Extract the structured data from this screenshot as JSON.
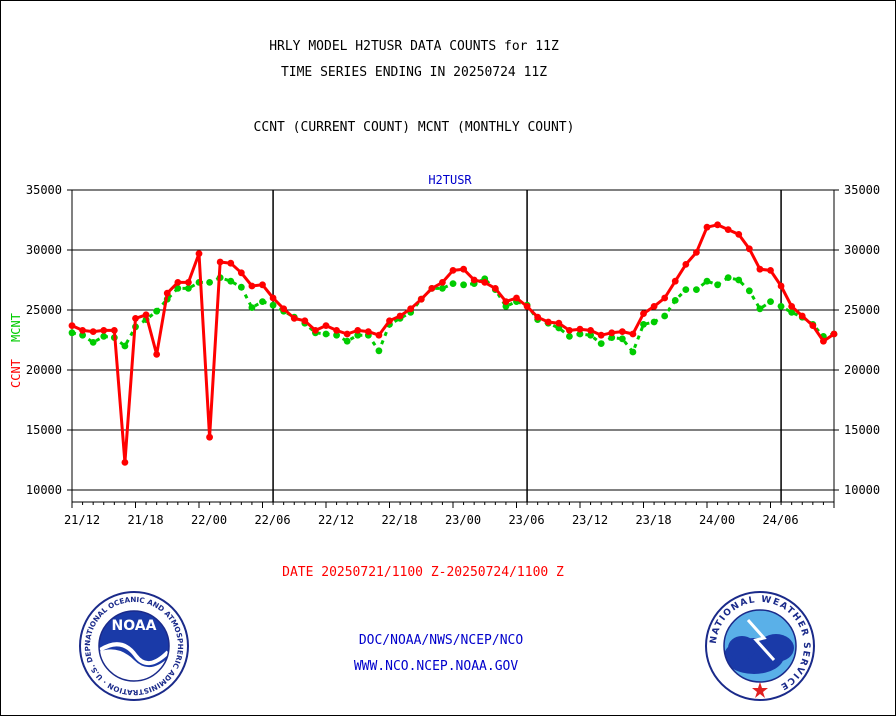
{
  "header": {
    "title_line1": "HRLY MODEL H2TUSR DATA COUNTS for 11Z",
    "title_line2": "TIME SERIES ENDING IN 20250724 11Z",
    "subtitle": "CCNT (CURRENT COUNT) MCNT (MONTHLY COUNT)"
  },
  "footer": {
    "date_range": "DATE 20250721/1100 Z-20250724/1100 Z",
    "org_path": "DOC/NOAA/NWS/NCEP/NCO",
    "website": "WWW.NCO.NCEP.NOAA.GOV"
  },
  "logos": {
    "noaa_text": "NOAA",
    "noaa_ring": "NATIONAL OCEANIC AND ATMOSPHERIC ADMINISTRATION · U.S. DEPARTMENT OF COMMERCE ·",
    "nws_ring": "NATIONAL WEATHER SERVICE"
  },
  "colors": {
    "ccnt": "#ff0000",
    "mcnt": "#00cc00",
    "plot_label": "#0000cc",
    "footer_blue": "#0000cc",
    "date_red": "#ff0000"
  },
  "chart_data": {
    "type": "line",
    "plot_label": "H2TUSR",
    "ylabel_ccnt": "CCNT",
    "ylabel_mcnt": "MCNT",
    "ylim": [
      9000,
      35000
    ],
    "yticks": [
      10000,
      15000,
      20000,
      25000,
      30000,
      35000
    ],
    "xlim": [
      0,
      72
    ],
    "xticks": [
      {
        "x": 0,
        "label": "21/12"
      },
      {
        "x": 6,
        "label": "21/18"
      },
      {
        "x": 12,
        "label": "22/00"
      },
      {
        "x": 18,
        "label": "22/06"
      },
      {
        "x": 24,
        "label": "22/12"
      },
      {
        "x": 30,
        "label": "22/18"
      },
      {
        "x": 36,
        "label": "23/00"
      },
      {
        "x": 42,
        "label": "23/06"
      },
      {
        "x": 48,
        "label": "23/12"
      },
      {
        "x": 54,
        "label": "23/18"
      },
      {
        "x": 60,
        "label": "24/00"
      },
      {
        "x": 66,
        "label": "24/06"
      }
    ],
    "day_boundaries": [
      19,
      43,
      67
    ],
    "gridlines_y": [
      10000,
      15000,
      20000,
      25000,
      30000
    ],
    "series": [
      {
        "name": "CCNT",
        "color": "#ff0000",
        "style": "solid",
        "values": [
          23700,
          23300,
          23200,
          23300,
          23300,
          12300,
          24300,
          24600,
          21300,
          26400,
          27300,
          27300,
          29700,
          14400,
          29000,
          28900,
          28100,
          27000,
          27100,
          26000,
          25100,
          24300,
          24100,
          23300,
          23700,
          23300,
          23000,
          23300,
          23200,
          22900,
          24100,
          24500,
          25100,
          25900,
          26800,
          27300,
          28300,
          28400,
          27500,
          27300,
          26800,
          25700,
          26000,
          25300,
          24400,
          24000,
          23900,
          23300,
          23400,
          23300,
          22900,
          23100,
          23200,
          23000,
          24700,
          25300,
          26000,
          27400,
          28800,
          29800,
          31900,
          32100,
          31700,
          31300,
          30100,
          28400,
          28300,
          27000,
          25300,
          24500,
          23700,
          22400,
          23000
        ]
      },
      {
        "name": "MCNT",
        "color": "#00cc00",
        "style": "dashed",
        "values": [
          23100,
          22900,
          22300,
          22800,
          22700,
          22000,
          23600,
          24200,
          24900,
          25900,
          26800,
          26800,
          27300,
          27300,
          27700,
          27400,
          26900,
          25200,
          25700,
          25400,
          24900,
          24400,
          23900,
          23100,
          23000,
          22900,
          22400,
          22900,
          22900,
          21600,
          23800,
          24300,
          24800,
          25900,
          26800,
          26800,
          27200,
          27100,
          27200,
          27600,
          26700,
          25300,
          25700,
          25400,
          24200,
          23900,
          23500,
          22800,
          23000,
          22900,
          22200,
          22700,
          22600,
          21500,
          23800,
          24000,
          24500,
          25800,
          26700,
          26700,
          27400,
          27100,
          27700,
          27500,
          26600,
          25100,
          25700,
          25300,
          24800,
          24400,
          23800,
          22800,
          23000
        ]
      }
    ]
  }
}
